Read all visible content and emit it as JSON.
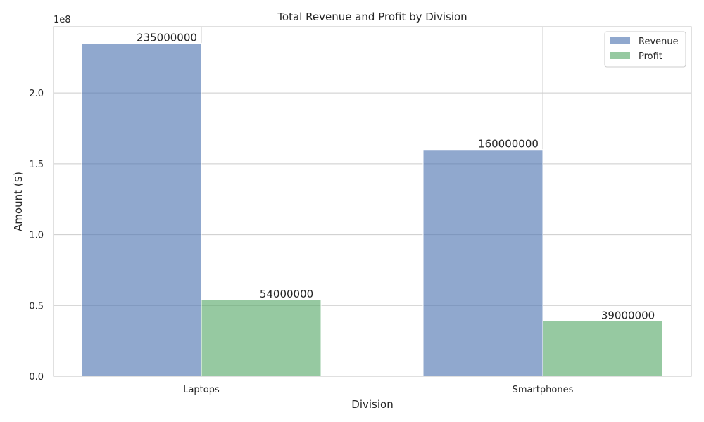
{
  "chart_data": {
    "type": "bar",
    "title": "Total Revenue and Profit by Division",
    "xlabel": "Division",
    "ylabel": "Amount ($)",
    "offset_text": "1e8",
    "categories": [
      "Laptops",
      "Smartphones"
    ],
    "series": [
      {
        "name": "Revenue",
        "values": [
          235000000,
          160000000
        ],
        "color": "#4c72b0"
      },
      {
        "name": "Profit",
        "values": [
          54000000,
          39000000
        ],
        "color": "#55a868"
      }
    ],
    "data_labels": [
      [
        "235000000",
        "160000000"
      ],
      [
        "54000000",
        "39000000"
      ]
    ],
    "ylim": [
      0,
      246750000
    ],
    "yticks": [
      0,
      50000000,
      100000000,
      150000000,
      200000000
    ],
    "ytick_labels": [
      "0.0",
      "0.5",
      "1.0",
      "1.5",
      "2.0"
    ],
    "grid": true,
    "legend_position": "top-right"
  }
}
